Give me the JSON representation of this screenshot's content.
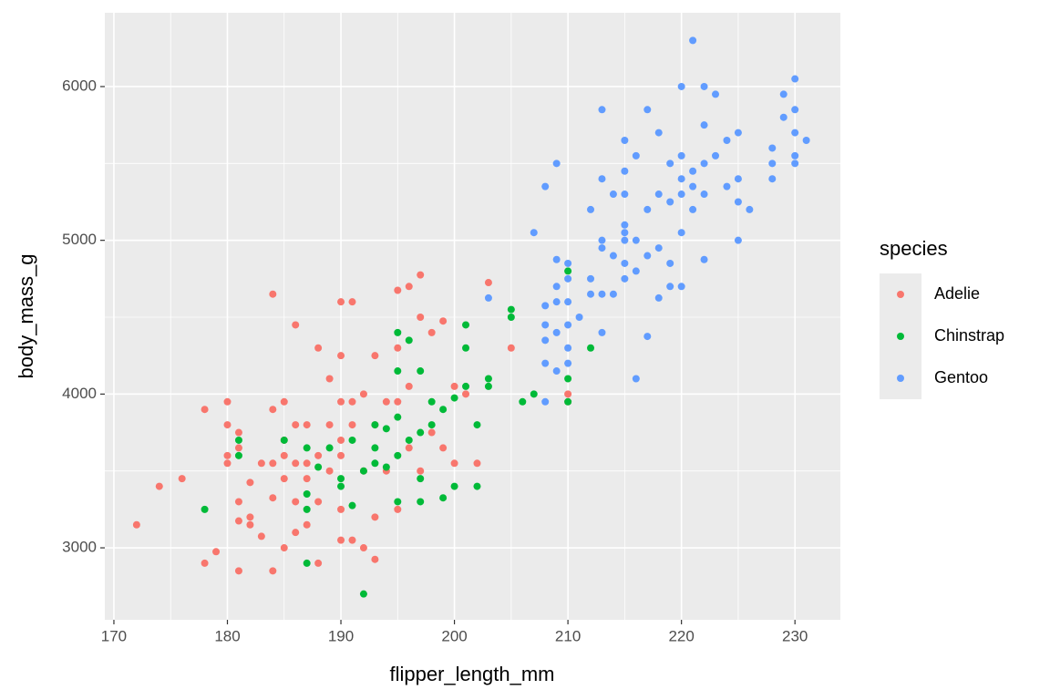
{
  "chart_data": {
    "type": "scatter",
    "x_label": "flipper_length_mm",
    "y_label": "body_mass_g",
    "legend_title": "species",
    "legend": "right",
    "grid": true,
    "xlim": [
      169.2,
      234.0
    ],
    "xticks": [
      170,
      180,
      190,
      200,
      210,
      220,
      230
    ],
    "ylim": [
      2532,
      6480
    ],
    "yticks": [
      3000,
      4000,
      5000,
      6000
    ],
    "series": [
      {
        "name": "Adelie",
        "color": "#F8766D",
        "x": [
          172,
          174,
          176,
          178,
          178,
          179,
          180,
          180,
          180,
          180,
          181,
          181,
          181,
          181,
          181,
          182,
          182,
          182,
          183,
          183,
          184,
          184,
          184,
          184,
          184,
          185,
          185,
          185,
          185,
          185,
          186,
          186,
          186,
          186,
          186,
          187,
          187,
          187,
          187,
          188,
          188,
          188,
          188,
          189,
          189,
          189,
          190,
          190,
          190,
          190,
          190,
          190,
          190,
          191,
          191,
          191,
          191,
          192,
          192,
          192,
          193,
          193,
          193,
          193,
          194,
          194,
          195,
          195,
          195,
          195,
          196,
          196,
          196,
          197,
          197,
          197,
          198,
          198,
          199,
          199,
          200,
          200,
          201,
          202,
          203,
          205,
          210,
          210
        ],
        "values": [
          3150,
          3400,
          3450,
          3900,
          2900,
          2975,
          3950,
          3800,
          3600,
          3550,
          3750,
          3650,
          3300,
          3175,
          2850,
          3425,
          3200,
          3150,
          3550,
          3075,
          4650,
          3900,
          3550,
          3325,
          2850,
          3950,
          3700,
          3600,
          3450,
          3000,
          4450,
          3800,
          3550,
          3300,
          3100,
          3800,
          3550,
          3450,
          3150,
          4300,
          3600,
          3300,
          2900,
          4100,
          3800,
          3500,
          4600,
          4250,
          3950,
          3700,
          3600,
          3250,
          3050,
          4600,
          3950,
          3800,
          3050,
          4000,
          3500,
          3000,
          4250,
          3800,
          3200,
          2925,
          3950,
          3500,
          4675,
          4300,
          3950,
          3250,
          4700,
          4050,
          3650,
          4775,
          4500,
          3500,
          4400,
          3750,
          4475,
          3650,
          4050,
          3550,
          4000,
          3550,
          4725,
          4300,
          4000,
          3950
        ]
      },
      {
        "name": "Chinstrap",
        "color": "#00BA38",
        "x": [
          178,
          181,
          181,
          185,
          187,
          187,
          187,
          187,
          188,
          189,
          190,
          190,
          191,
          191,
          192,
          192,
          193,
          193,
          193,
          194,
          194,
          195,
          195,
          195,
          195,
          195,
          196,
          196,
          197,
          197,
          197,
          197,
          198,
          198,
          199,
          199,
          200,
          200,
          201,
          201,
          201,
          202,
          202,
          203,
          203,
          205,
          205,
          206,
          207,
          210,
          210,
          210,
          212
        ],
        "values": [
          3250,
          3700,
          3600,
          3700,
          3650,
          3350,
          3250,
          2900,
          3525,
          3650,
          3450,
          3400,
          3700,
          3275,
          3500,
          2700,
          3800,
          3650,
          3550,
          3775,
          3525,
          4400,
          4150,
          3850,
          3600,
          3300,
          4350,
          3700,
          4150,
          3750,
          3450,
          3300,
          3950,
          3800,
          3900,
          3325,
          3975,
          3400,
          4450,
          4300,
          4050,
          3800,
          3400,
          4100,
          4050,
          4550,
          4500,
          3950,
          4000,
          4800,
          4100,
          3950,
          4300
        ]
      },
      {
        "name": "Gentoo",
        "color": "#619CFF",
        "x": [
          203,
          207,
          208,
          208,
          208,
          208,
          208,
          208,
          209,
          209,
          209,
          209,
          209,
          209,
          210,
          210,
          210,
          210,
          210,
          210,
          211,
          212,
          212,
          212,
          213,
          213,
          213,
          213,
          213,
          213,
          214,
          214,
          214,
          215,
          215,
          215,
          215,
          215,
          215,
          215,
          215,
          216,
          216,
          216,
          216,
          217,
          217,
          217,
          217,
          218,
          218,
          218,
          218,
          219,
          219,
          219,
          219,
          220,
          220,
          220,
          220,
          220,
          220,
          221,
          221,
          221,
          221,
          222,
          222,
          222,
          222,
          222,
          223,
          223,
          224,
          224,
          225,
          225,
          225,
          225,
          226,
          228,
          228,
          228,
          229,
          229,
          230,
          230,
          230,
          230,
          230,
          231
        ],
        "values": [
          4625,
          5050,
          5350,
          4575,
          4450,
          4350,
          4200,
          3950,
          5500,
          4875,
          4700,
          4600,
          4400,
          4150,
          4850,
          4750,
          4600,
          4450,
          4300,
          4200,
          4500,
          5200,
          4750,
          4650,
          5850,
          5400,
          5000,
          4950,
          4650,
          4400,
          5300,
          4900,
          4650,
          5650,
          5450,
          5300,
          5100,
          5050,
          5000,
          4850,
          4750,
          5550,
          5000,
          4800,
          4100,
          5850,
          5200,
          4900,
          4375,
          5700,
          5300,
          4950,
          4625,
          5500,
          5250,
          4850,
          4700,
          6000,
          5550,
          5400,
          5300,
          5050,
          4700,
          6300,
          5450,
          5350,
          5200,
          6000,
          5750,
          5500,
          5300,
          4875,
          5950,
          5550,
          5650,
          5350,
          5700,
          5400,
          5250,
          5000,
          5200,
          5600,
          5500,
          5400,
          5950,
          5800,
          6050,
          5850,
          5700,
          5550,
          5500,
          5650
        ]
      }
    ]
  }
}
